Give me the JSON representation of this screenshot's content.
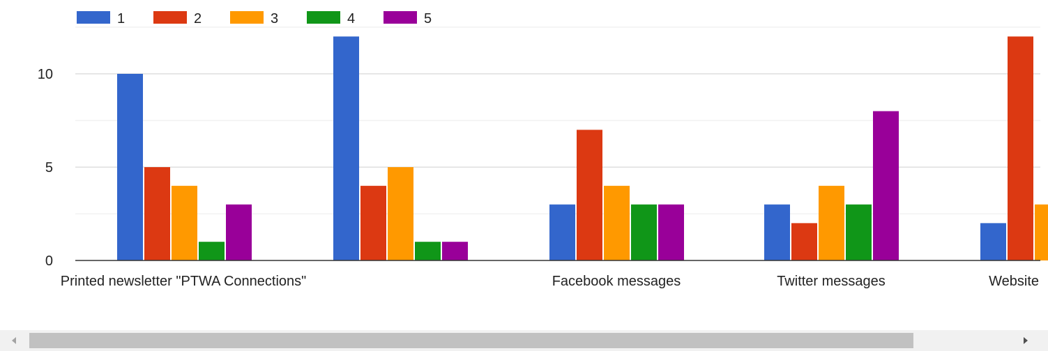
{
  "chart_data": {
    "type": "bar",
    "categories": [
      "Printed newsletter \"PTWA Connections\"",
      "",
      "Facebook messages",
      "Twitter messages",
      "Website"
    ],
    "series": [
      {
        "name": "1",
        "color": "#3366cc",
        "values": [
          10,
          12,
          3,
          3,
          2
        ]
      },
      {
        "name": "2",
        "color": "#dc3912",
        "values": [
          5,
          4,
          7,
          2,
          12
        ]
      },
      {
        "name": "3",
        "color": "#ff9900",
        "values": [
          4,
          5,
          4,
          4,
          3
        ]
      },
      {
        "name": "4",
        "color": "#109618",
        "values": [
          1,
          1,
          3,
          3,
          null
        ]
      },
      {
        "name": "5",
        "color": "#990099",
        "values": [
          3,
          1,
          3,
          8,
          null
        ]
      }
    ],
    "y_ticks": [
      "0",
      "5",
      "10"
    ],
    "ylim": [
      0,
      12.5
    ],
    "grid": true,
    "legend_position": "top-left"
  },
  "scrollbar": {
    "left_arrow_icon": "triangle-left-icon",
    "right_arrow_icon": "triangle-right-icon"
  }
}
